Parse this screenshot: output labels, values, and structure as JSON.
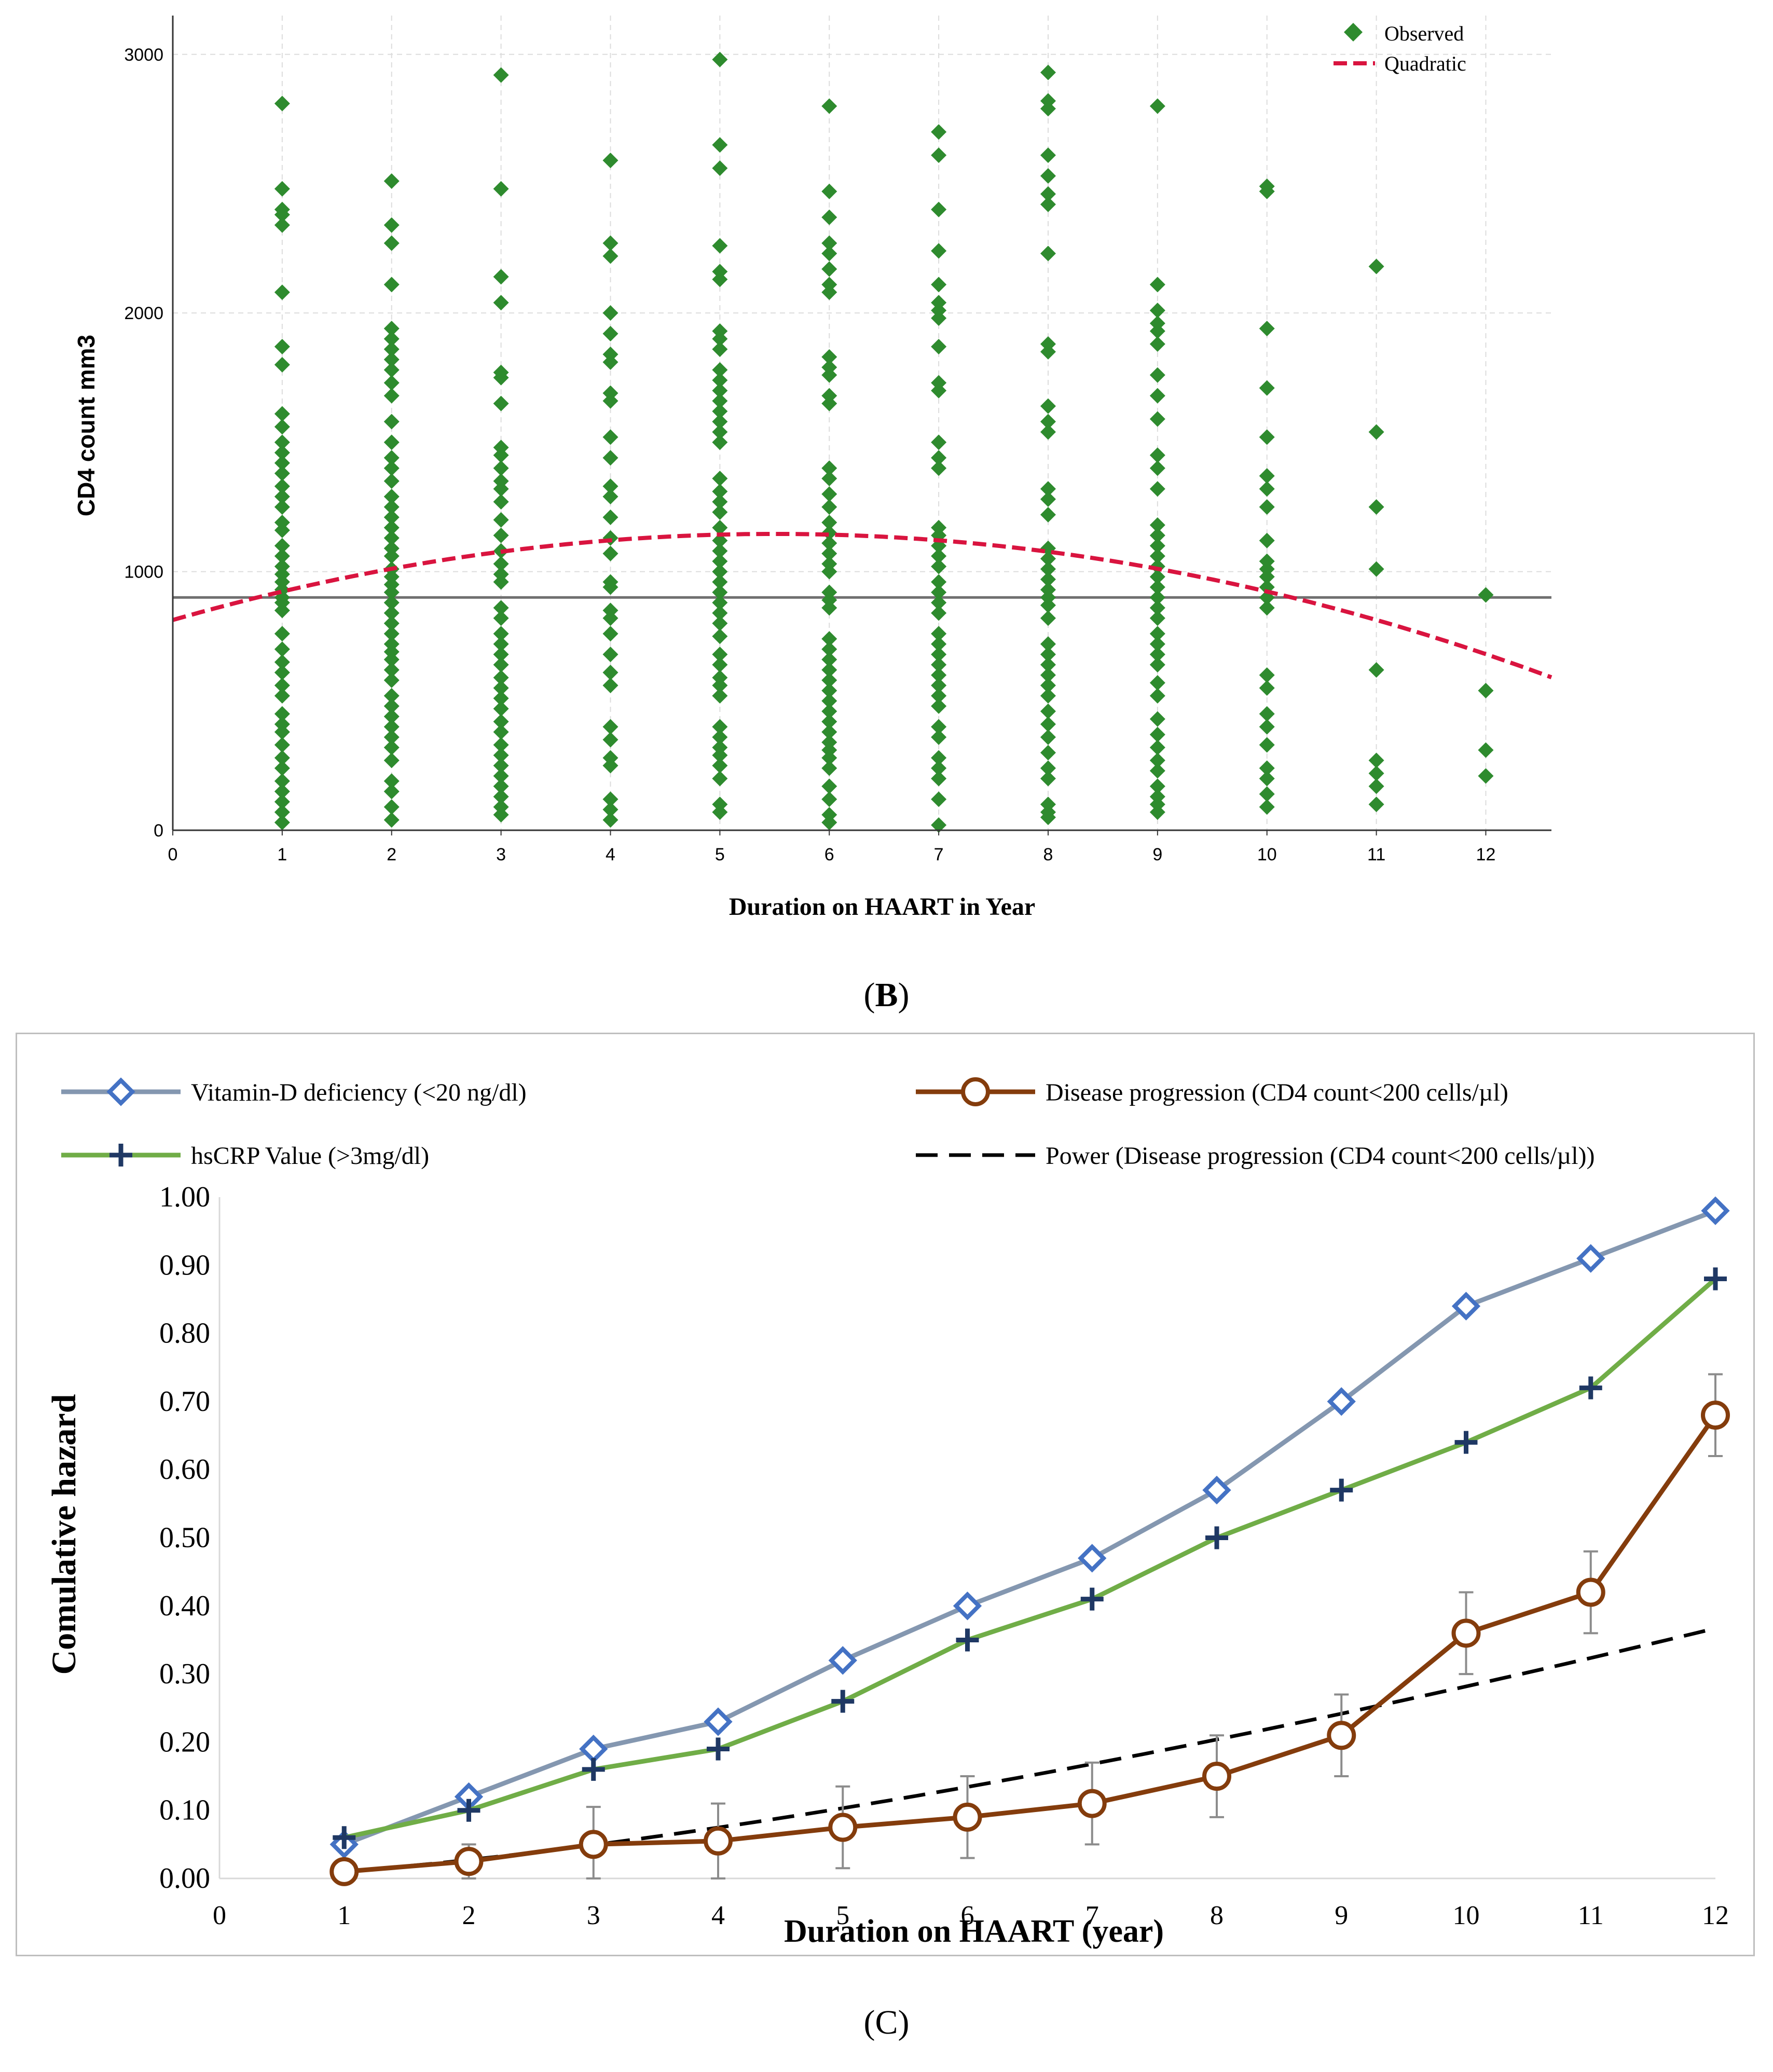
{
  "panel_b": {
    "label_open": "(",
    "label_letter": "B",
    "label_close": ")"
  },
  "panel_c": {
    "label_open": "(",
    "label_letter": "C",
    "label_close": ")"
  },
  "chart_data": [
    {
      "type": "scatter",
      "xlabel": "Duration on HAART in Year",
      "ylabel": "CD4 count mm3",
      "xlim": [
        0,
        12.6
      ],
      "ylim": [
        0,
        3150
      ],
      "x_ticks": [
        "0",
        "1",
        "2",
        "3",
        "4",
        "5",
        "6",
        "7",
        "8",
        "9",
        "10",
        "11",
        "12"
      ],
      "y_ticks": [
        "0",
        "1000",
        "2000",
        "3000"
      ],
      "grid": true,
      "legend_position": "top-right",
      "legend": [
        "Observed",
        "Quadratic"
      ],
      "reference_line_y": 900,
      "quadratic_fit": {
        "a": -11.0,
        "b": 121,
        "c": 813
      },
      "colors": {
        "observed": "#2e8b2e",
        "quadratic": "#d9143f",
        "reference": "#707070"
      },
      "observed": [
        {
          "x": 1,
          "y": [
            2810,
            2480,
            2400,
            2380,
            2340,
            2080,
            1870,
            1800,
            1610,
            1560,
            1500,
            1460,
            1420,
            1380,
            1330,
            1290,
            1250,
            1190,
            1160,
            1100,
            1060,
            1020,
            990,
            960,
            930,
            900,
            880,
            850,
            760,
            700,
            650,
            610,
            560,
            520,
            450,
            410,
            380,
            330,
            280,
            240,
            190,
            150,
            110,
            70,
            30
          ]
        },
        {
          "x": 2,
          "y": [
            2510,
            2340,
            2270,
            2110,
            1940,
            1900,
            1860,
            1820,
            1780,
            1730,
            1680,
            1580,
            1500,
            1440,
            1400,
            1350,
            1290,
            1250,
            1210,
            1170,
            1130,
            1090,
            1060,
            1010,
            980,
            950,
            920,
            880,
            840,
            800,
            760,
            720,
            690,
            660,
            620,
            580,
            520,
            480,
            440,
            400,
            360,
            320,
            270,
            190,
            150,
            90,
            40
          ]
        },
        {
          "x": 3,
          "y": [
            2920,
            2480,
            2140,
            2040,
            1770,
            1750,
            1650,
            1480,
            1450,
            1400,
            1350,
            1320,
            1270,
            1200,
            1140,
            1080,
            1030,
            990,
            960,
            860,
            820,
            760,
            720,
            680,
            640,
            590,
            550,
            510,
            470,
            420,
            380,
            330,
            290,
            250,
            210,
            170,
            130,
            90,
            60
          ]
        },
        {
          "x": 4,
          "y": [
            2590,
            2270,
            2220,
            2000,
            1920,
            1840,
            1810,
            1690,
            1660,
            1520,
            1440,
            1330,
            1290,
            1210,
            1130,
            1070,
            960,
            940,
            850,
            820,
            760,
            680,
            610,
            560,
            400,
            350,
            280,
            250,
            120,
            80,
            40
          ]
        },
        {
          "x": 5,
          "y": [
            2980,
            2650,
            2560,
            2260,
            2160,
            2130,
            1930,
            1900,
            1860,
            1780,
            1740,
            1700,
            1660,
            1620,
            1580,
            1540,
            1500,
            1360,
            1310,
            1270,
            1230,
            1170,
            1120,
            1080,
            1040,
            1000,
            960,
            920,
            880,
            840,
            800,
            750,
            680,
            640,
            590,
            560,
            520,
            400,
            360,
            320,
            290,
            250,
            200,
            100,
            70
          ]
        },
        {
          "x": 6,
          "y": [
            2800,
            2470,
            2370,
            2270,
            2230,
            2170,
            2110,
            2080,
            1830,
            1790,
            1760,
            1680,
            1650,
            1400,
            1360,
            1300,
            1250,
            1190,
            1150,
            1110,
            1070,
            1030,
            1000,
            920,
            890,
            860,
            740,
            700,
            660,
            620,
            580,
            540,
            500,
            460,
            420,
            380,
            340,
            310,
            280,
            240,
            170,
            120,
            60,
            30
          ]
        },
        {
          "x": 7,
          "y": [
            2700,
            2610,
            2400,
            2240,
            2110,
            2040,
            2010,
            1980,
            1870,
            1730,
            1700,
            1500,
            1440,
            1400,
            1170,
            1140,
            1100,
            1060,
            1020,
            960,
            920,
            880,
            840,
            760,
            720,
            680,
            640,
            600,
            560,
            520,
            480,
            400,
            360,
            280,
            240,
            200,
            120,
            20
          ]
        },
        {
          "x": 8,
          "y": [
            2930,
            2820,
            2790,
            2610,
            2530,
            2460,
            2420,
            2230,
            1880,
            1850,
            1640,
            1580,
            1540,
            1320,
            1280,
            1220,
            1090,
            1050,
            1010,
            970,
            930,
            900,
            870,
            820,
            720,
            680,
            640,
            600,
            560,
            520,
            460,
            410,
            360,
            300,
            240,
            200,
            100,
            70,
            50
          ]
        },
        {
          "x": 9,
          "y": [
            2800,
            2110,
            2010,
            1960,
            1930,
            1880,
            1760,
            1680,
            1590,
            1450,
            1400,
            1320,
            1180,
            1140,
            1100,
            1060,
            1020,
            980,
            940,
            900,
            860,
            820,
            760,
            720,
            680,
            640,
            570,
            520,
            430,
            370,
            320,
            270,
            230,
            170,
            130,
            100,
            70
          ]
        },
        {
          "x": 10,
          "y": [
            2490,
            2470,
            1940,
            1710,
            1520,
            1370,
            1320,
            1250,
            1120,
            1040,
            1010,
            980,
            940,
            900,
            860,
            600,
            550,
            450,
            400,
            330,
            240,
            200,
            140,
            90
          ]
        },
        {
          "x": 11,
          "y": [
            2180,
            1540,
            1250,
            1010,
            620,
            270,
            220,
            170,
            100
          ]
        },
        {
          "x": 12,
          "y": [
            910,
            540,
            310,
            210
          ]
        }
      ]
    },
    {
      "type": "line",
      "xlabel": "Duration on HAART (year)",
      "ylabel": "Comulative hazard",
      "xlim": [
        0,
        12
      ],
      "ylim": [
        0,
        1
      ],
      "x_ticks": [
        "0",
        "1",
        "2",
        "3",
        "4",
        "5",
        "6",
        "7",
        "8",
        "9",
        "10",
        "11",
        "12"
      ],
      "y_ticks": [
        "0.00",
        "0.10",
        "0.20",
        "0.30",
        "0.40",
        "0.50",
        "0.60",
        "0.70",
        "0.80",
        "0.90",
        "1.00"
      ],
      "legend_position": "top",
      "x": [
        1,
        2,
        3,
        4,
        5,
        6,
        7,
        8,
        9,
        10,
        11,
        12
      ],
      "series": [
        {
          "name": "Vitamin-D deficiency (<20 ng/dl)",
          "marker": "diamond",
          "line_color": "#8497b0",
          "marker_color": "#4472c4",
          "values": [
            0.05,
            0.12,
            0.19,
            0.23,
            0.32,
            0.4,
            0.47,
            0.57,
            0.7,
            0.84,
            0.91,
            0.98
          ]
        },
        {
          "name": "Disease progression (CD4 count<200 cells/µl)",
          "marker": "circle",
          "line_color": "#843c0c",
          "marker_color": "#843c0c",
          "values": [
            0.01,
            0.025,
            0.05,
            0.055,
            0.075,
            0.09,
            0.11,
            0.15,
            0.21,
            0.36,
            0.42,
            0.68
          ],
          "error": [
            0.01,
            0.025,
            0.055,
            0.055,
            0.06,
            0.06,
            0.06,
            0.06,
            0.06,
            0.06,
            0.06,
            0.06
          ]
        },
        {
          "name": "hsCRP Value (>3mg/dl)",
          "marker": "plus",
          "line_color": "#70ad47",
          "marker_color": "#1f3864",
          "values": [
            0.06,
            0.1,
            0.16,
            0.19,
            0.26,
            0.35,
            0.41,
            0.5,
            0.57,
            0.64,
            0.72,
            0.88
          ]
        },
        {
          "name": "Power (Disease progression (CD4 count<200 cells/µl))",
          "marker": "none",
          "dashed": true,
          "line_color": "#000000",
          "power_fit": {
            "a": 0.01,
            "b": 1.45
          }
        }
      ]
    }
  ]
}
